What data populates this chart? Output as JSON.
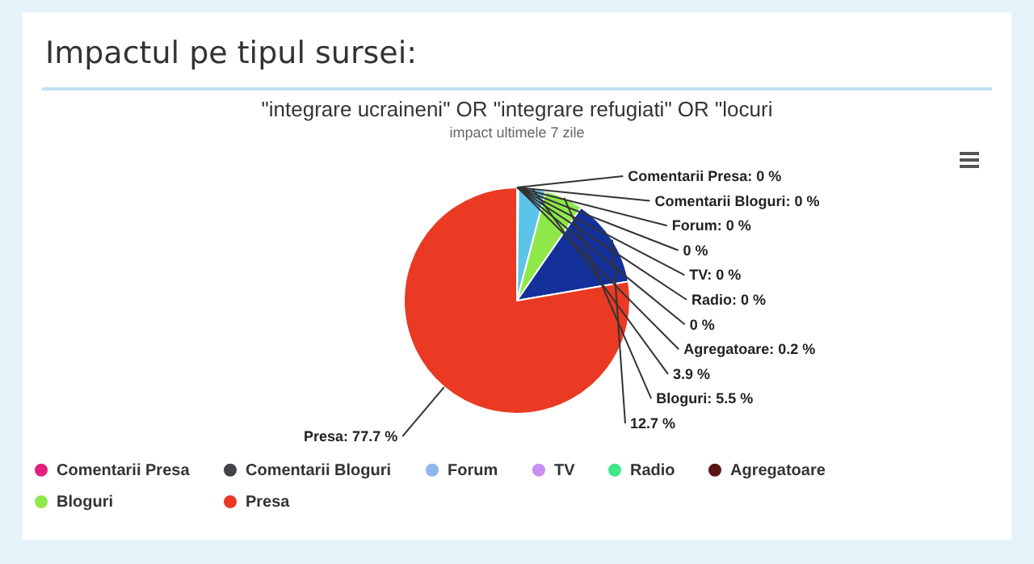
{
  "chart_data": {
    "type": "pie",
    "title": "\"integrare ucraineni\" OR \"integrare refugiati\" OR \"locuri",
    "subtitle": "impact ultimele 7 zile",
    "annotations": [
      "Impactul pe tipul sursei:"
    ],
    "categories": [
      "Comentarii Presa",
      "Comentarii Bloguri",
      "Forum",
      null,
      "TV",
      "Radio",
      null,
      null,
      "Agregatoare",
      null,
      "Bloguri",
      null,
      "Presa"
    ],
    "values": [
      0,
      0,
      0,
      0,
      0,
      0,
      0,
      null,
      0.2,
      3.9,
      5.5,
      12.7,
      77.7
    ],
    "value_labels": [
      "Comentarii Presa: 0 %",
      "Comentarii Bloguri: 0 %",
      "Forum: 0 %",
      "0 %",
      "TV: 0 %",
      "Radio: 0 %",
      "0 %",
      null,
      "Agregatoare: 0.2 %",
      "3.9 %",
      "Bloguri: 5.5 %",
      "12.7 %",
      "Presa: 77.7 %"
    ],
    "colors": [
      "#e4207c",
      "#434348",
      "#90b4ed",
      "#3f5e80",
      "#c88ef0",
      "#3de88a",
      "#d8c96a",
      "#434343",
      "#5a1414",
      "#5bc4e8",
      "#8fe84a",
      "#14309a",
      "#ea3a23"
    ],
    "legend": "bottom"
  }
}
